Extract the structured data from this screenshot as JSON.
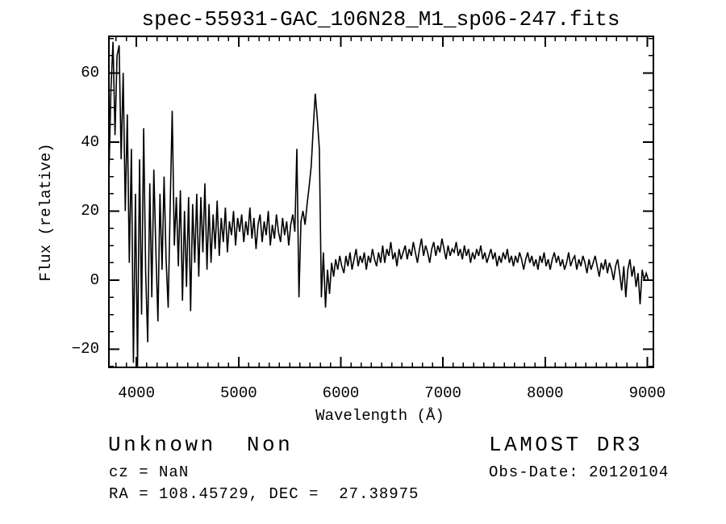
{
  "annotations": {
    "class_line": "Unknown  Non",
    "survey_line": "LAMOST DR3",
    "cz_line": "cz = NaN",
    "obsdate_line": "Obs-Date: 20120104",
    "coords_line": "RA = 108.45729, DEC =  27.38975"
  },
  "chart_data": {
    "type": "line",
    "title": "spec-55931-GAC_106N28_M1_sp06-247.fits",
    "xlabel": "Wavelength (Å)",
    "ylabel": "Flux (relative)",
    "xlim": [
      3730,
      9060
    ],
    "ylim": [
      -25.3,
      70.6
    ],
    "xticks": [
      4000,
      5000,
      6000,
      7000,
      8000,
      9000
    ],
    "yticks": [
      -20,
      0,
      20,
      40,
      60
    ],
    "x_minor_step": 100,
    "y_minor_step": 5,
    "grid": false,
    "legend": "none",
    "line_color": "#000000",
    "background_color": "#ffffff",
    "series": [
      {
        "name": "spectrum",
        "x_start": 3730,
        "x_step": 20,
        "y": [
          30,
          55,
          69,
          42,
          65,
          68,
          35,
          60,
          20,
          48,
          5,
          38,
          -24,
          25,
          -25,
          35,
          -10,
          44,
          2,
          -18,
          28,
          -5,
          32,
          8,
          -12,
          25,
          3,
          30,
          6,
          -8,
          22,
          49,
          10,
          24,
          4,
          26,
          -6,
          20,
          -2,
          24,
          -9,
          22,
          5,
          25,
          1,
          24,
          8,
          28,
          3,
          22,
          5,
          19,
          9,
          23,
          7,
          18,
          11,
          21,
          8,
          17,
          13,
          20,
          10,
          18,
          14,
          19,
          11,
          17,
          13,
          21,
          12,
          18,
          9,
          16,
          19,
          11,
          17,
          13,
          20,
          10,
          16,
          12,
          19,
          14,
          11,
          18,
          13,
          17,
          10,
          16,
          19,
          14,
          38,
          -5,
          17,
          20,
          16,
          22,
          27,
          33,
          44,
          54,
          47,
          38,
          -5,
          8,
          -8,
          3,
          -4,
          5,
          1,
          6,
          3,
          7,
          4,
          2,
          7,
          4,
          8,
          3,
          6,
          9,
          4,
          7,
          5,
          8,
          3,
          7,
          5,
          9,
          6,
          4,
          8,
          5,
          10,
          5,
          9,
          7,
          11,
          6,
          8,
          4,
          9,
          6,
          8,
          10,
          6,
          9,
          7,
          11,
          8,
          5,
          9,
          12,
          7,
          10,
          8,
          5,
          9,
          11,
          7,
          10,
          8,
          12,
          9,
          6,
          10,
          7,
          9,
          8,
          11,
          7,
          9,
          6,
          10,
          7,
          9,
          5,
          8,
          6,
          9,
          7,
          10,
          6,
          8,
          5,
          7,
          9,
          6,
          8,
          4,
          7,
          5,
          8,
          6,
          9,
          5,
          7,
          4,
          7,
          5,
          8,
          6,
          3,
          6,
          8,
          5,
          7,
          4,
          6,
          3,
          7,
          5,
          8,
          4,
          6,
          3,
          6,
          8,
          5,
          7,
          4,
          6,
          3,
          5,
          8,
          4,
          6,
          7,
          3,
          6,
          4,
          7,
          5,
          2,
          6,
          3,
          5,
          7,
          4,
          1,
          5,
          3,
          6,
          2,
          5,
          3,
          0,
          4,
          6,
          2,
          -3,
          4,
          -5,
          3,
          6,
          1,
          4,
          -2,
          2,
          -7,
          3,
          0,
          2,
          0
        ]
      }
    ]
  }
}
